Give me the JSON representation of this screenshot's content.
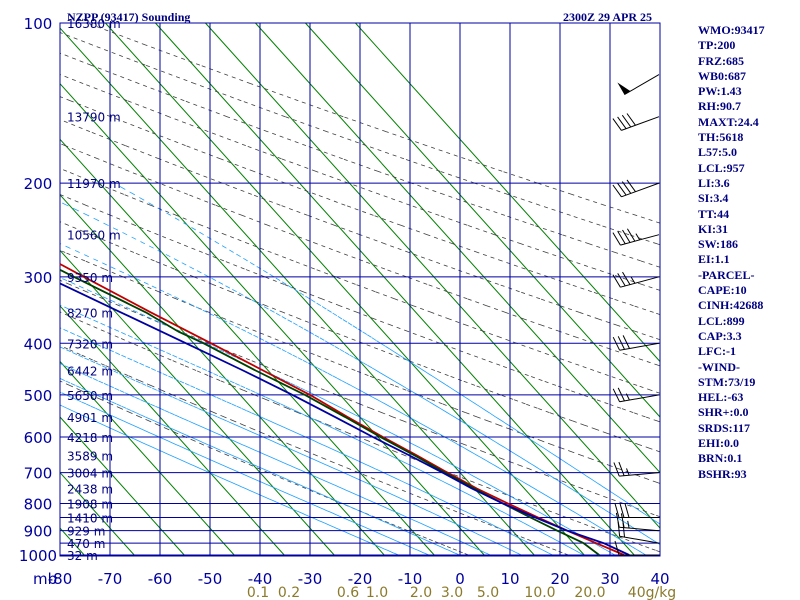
{
  "header": {
    "station": "NZPP (93417) Sounding",
    "time": "2300Z 29 APR 25"
  },
  "indices": [
    "WMO:93417",
    "TP:200",
    "FRZ:685",
    "WB0:687",
    "PW:1.43",
    "RH:90.7",
    "MAXT:24.4",
    "TH:5618",
    "L57:5.0",
    "LCL:957",
    "LI:3.6",
    "SI:3.4",
    "TT:44",
    "KI:31",
    "SW:186",
    "EI:1.1",
    "-PARCEL-",
    "CAPE:10",
    "CINH:42688",
    "LCL:899",
    "CAP:3.3",
    "LFC:-1",
    "-WIND-",
    "STM:73/19",
    "HEL:-63",
    "SHR+:0.0",
    "SRDS:117",
    "EHI:0.0",
    "BRN:0.1",
    "BSHR:93"
  ],
  "chart_data": {
    "type": "line",
    "title": "NZPP (93417) Sounding",
    "subtitle": "2300Z 29 APR 25",
    "x_axis": {
      "ticks": [
        -80,
        -70,
        -60,
        -50,
        -40,
        -30,
        -20,
        -10,
        0,
        10,
        20,
        30,
        40
      ],
      "range": [
        -80,
        40
      ],
      "unit_label": "mb"
    },
    "y_axis": {
      "scale": "log",
      "ticks": [
        100,
        200,
        300,
        400,
        500,
        600,
        700,
        800,
        900,
        1000
      ],
      "range": [
        100,
        1050
      ]
    },
    "height_labels": [
      {
        "p": 100,
        "label": "16380 m"
      },
      {
        "p": 150,
        "label": "13790 m"
      },
      {
        "p": 200,
        "label": "11970 m"
      },
      {
        "p": 250,
        "label": "10560 m"
      },
      {
        "p": 300,
        "label": "9350 m"
      },
      {
        "p": 350,
        "label": "8270 m"
      },
      {
        "p": 400,
        "label": "7320 m"
      },
      {
        "p": 450,
        "label": "6442 m"
      },
      {
        "p": 500,
        "label": "5650 m"
      },
      {
        "p": 550,
        "label": "4901 m"
      },
      {
        "p": 600,
        "label": "4218 m"
      },
      {
        "p": 650,
        "label": "3589 m"
      },
      {
        "p": 700,
        "label": "3004 m"
      },
      {
        "p": 750,
        "label": "2438 m"
      },
      {
        "p": 800,
        "label": "1908 m"
      },
      {
        "p": 850,
        "label": "1410 m"
      },
      {
        "p": 900,
        "label": "929 m"
      },
      {
        "p": 950,
        "label": "470 m"
      },
      {
        "p": 1000,
        "label": "32 m"
      }
    ],
    "mixing_ratio_labels": [
      "0.1",
      "0.2",
      "0.6",
      "1.0",
      "2.0",
      "3.0",
      "5.0",
      "10.0",
      "20.0",
      "40g/kg"
    ],
    "series": [
      {
        "key": "temperature",
        "color": "#c00000",
        "points": [
          {
            "p": 1000,
            "t": 18
          },
          {
            "p": 950,
            "t": 14.5
          },
          {
            "p": 900,
            "t": 11
          },
          {
            "p": 850,
            "t": 7.5
          },
          {
            "p": 800,
            "t": 4
          },
          {
            "p": 750,
            "t": 0.5
          },
          {
            "p": 700,
            "t": -2.5
          },
          {
            "p": 650,
            "t": -5.5
          },
          {
            "p": 600,
            "t": -9
          },
          {
            "p": 550,
            "t": -12.5
          },
          {
            "p": 500,
            "t": -16
          },
          {
            "p": 450,
            "t": -21
          },
          {
            "p": 400,
            "t": -26.5
          },
          {
            "p": 350,
            "t": -33
          },
          {
            "p": 300,
            "t": -40
          },
          {
            "p": 250,
            "t": -48
          },
          {
            "p": 215,
            "t": -53
          },
          {
            "p": 200,
            "t": -53
          },
          {
            "p": 190,
            "t": -51
          },
          {
            "p": 175,
            "t": -51
          },
          {
            "p": 150,
            "t": -48
          },
          {
            "p": 125,
            "t": -51
          },
          {
            "p": 100,
            "t": -54
          }
        ]
      },
      {
        "key": "dewpoint",
        "color": "#004000",
        "points": [
          {
            "p": 1000,
            "t": 13
          },
          {
            "p": 950,
            "t": 12
          },
          {
            "p": 900,
            "t": 9
          },
          {
            "p": 850,
            "t": 6
          },
          {
            "p": 800,
            "t": 3
          },
          {
            "p": 750,
            "t": 0
          },
          {
            "p": 700,
            "t": -3
          },
          {
            "p": 650,
            "t": -6
          },
          {
            "p": 600,
            "t": -9.5
          },
          {
            "p": 550,
            "t": -13
          },
          {
            "p": 500,
            "t": -17
          },
          {
            "p": 450,
            "t": -22.5
          },
          {
            "p": 400,
            "t": -28
          },
          {
            "p": 380,
            "t": -31
          },
          {
            "p": 350,
            "t": -34
          },
          {
            "p": 300,
            "t": -42
          },
          {
            "p": 250,
            "t": -51
          },
          {
            "p": 215,
            "t": -56
          },
          {
            "p": 200,
            "t": -57
          },
          {
            "p": 200,
            "t": -65
          },
          {
            "p": 150,
            "t": -73
          },
          {
            "p": 125,
            "t": -73
          },
          {
            "p": 100,
            "t": -72
          }
        ]
      },
      {
        "key": "parcel",
        "color": "#0000a0",
        "points": [
          {
            "p": 1000,
            "t": 19
          },
          {
            "p": 950,
            "t": 16
          },
          {
            "p": 900,
            "t": 11
          },
          {
            "p": 850,
            "t": 7
          },
          {
            "p": 800,
            "t": 3
          },
          {
            "p": 750,
            "t": -0.5
          },
          {
            "p": 700,
            "t": -3.5
          },
          {
            "p": 650,
            "t": -7
          },
          {
            "p": 600,
            "t": -11
          },
          {
            "p": 550,
            "t": -15
          },
          {
            "p": 500,
            "t": -19.5
          },
          {
            "p": 450,
            "t": -25
          },
          {
            "p": 400,
            "t": -31.5
          },
          {
            "p": 350,
            "t": -39
          },
          {
            "p": 300,
            "t": -47.5
          },
          {
            "p": 250,
            "t": -57.5
          },
          {
            "p": 200,
            "t": -70
          },
          {
            "p": 175,
            "t": -77
          }
        ]
      }
    ],
    "wind_barbs": [
      {
        "p": 1000,
        "dir": 270,
        "spd": 10
      },
      {
        "p": 950,
        "dir": 280,
        "spd": 20
      },
      {
        "p": 900,
        "dir": 275,
        "spd": 25
      },
      {
        "p": 850,
        "dir": 270,
        "spd": 30
      },
      {
        "p": 700,
        "dir": 265,
        "spd": 25
      },
      {
        "p": 500,
        "dir": 260,
        "spd": 25
      },
      {
        "p": 400,
        "dir": 260,
        "spd": 30
      },
      {
        "p": 300,
        "dir": 255,
        "spd": 35
      },
      {
        "p": 250,
        "dir": 255,
        "spd": 45
      },
      {
        "p": 200,
        "dir": 250,
        "spd": 40
      },
      {
        "p": 150,
        "dir": 250,
        "spd": 40
      },
      {
        "p": 125,
        "dir": 240,
        "spd": 50
      }
    ],
    "colors": {
      "isotherm": "#008000",
      "isobar": "#0000a0",
      "dry_adiabat": "#404040",
      "moist_adiabat": "#1fa0ff"
    }
  }
}
